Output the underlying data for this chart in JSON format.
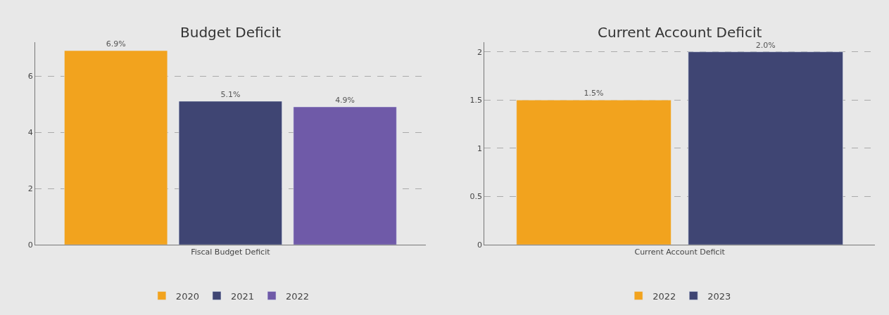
{
  "chart_data": [
    {
      "type": "bar",
      "title": "Budget Deficit",
      "categories": [
        "Fiscal Budget Deficit"
      ],
      "ylim": [
        0,
        7.2
      ],
      "yticks": [
        0,
        2,
        4,
        6
      ],
      "grid": "y",
      "legend": "bottom",
      "series": [
        {
          "name": "2020",
          "color": "#f2a31e",
          "values": [
            6.9
          ],
          "value_labels": [
            "6.9%"
          ]
        },
        {
          "name": "2021",
          "color": "#3f4573",
          "values": [
            5.1
          ],
          "value_labels": [
            "5.1%"
          ]
        },
        {
          "name": "2022",
          "color": "#6f5aa8",
          "values": [
            4.9
          ],
          "value_labels": [
            "4.9%"
          ]
        }
      ]
    },
    {
      "type": "bar",
      "title": "Current Account Deficit",
      "categories": [
        "Current Account Deficit"
      ],
      "ylim": [
        0,
        2.1
      ],
      "yticks": [
        0,
        0.5,
        1,
        1.5,
        2
      ],
      "grid": "y",
      "legend": "bottom",
      "series": [
        {
          "name": "2022",
          "color": "#f2a31e",
          "values": [
            1.5
          ],
          "value_labels": [
            "1.5%"
          ]
        },
        {
          "name": "2023",
          "color": "#3f4573",
          "values": [
            2.0
          ],
          "value_labels": [
            "2.0%"
          ]
        }
      ]
    }
  ]
}
